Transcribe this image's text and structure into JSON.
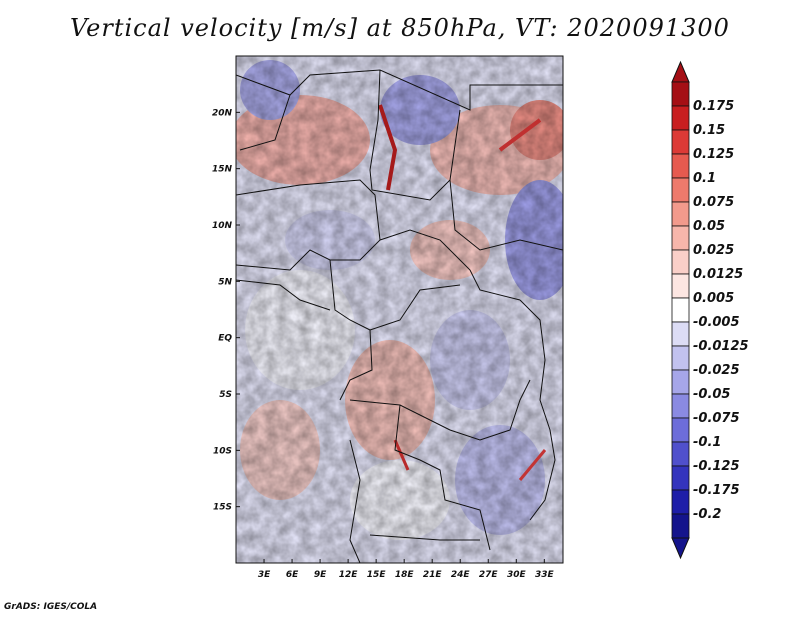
{
  "title": "Vertical velocity [m/s] at 850hPa, VT: 2020091300",
  "credit": "GrADS: IGES/COLA",
  "map": {
    "variable": "Vertical velocity",
    "units": "m/s",
    "level": "850hPa",
    "valid_time": "2020091300",
    "lat_labels": [
      "20N",
      "15N",
      "10N",
      "5N",
      "EQ",
      "5S",
      "10S",
      "15S"
    ],
    "lon_labels": [
      "3E",
      "6E",
      "9E",
      "12E",
      "15E",
      "18E",
      "21E",
      "24E",
      "27E",
      "30E",
      "33E"
    ],
    "lat_range": [
      -20,
      25
    ],
    "lon_range": [
      0,
      35
    ]
  },
  "colorbar": {
    "labels": [
      "0.175",
      "0.15",
      "0.125",
      "0.1",
      "0.075",
      "0.05",
      "0.025",
      "0.0125",
      "0.005",
      "-0.005",
      "-0.0125",
      "-0.025",
      "-0.05",
      "-0.075",
      "-0.1",
      "-0.125",
      "-0.175",
      "-0.2"
    ],
    "colors": [
      "#a50f15",
      "#c81e20",
      "#dc3a36",
      "#e65a4f",
      "#ee7a6c",
      "#f29a8c",
      "#f7b6ab",
      "#facfc8",
      "#fde6e2",
      "#ffffff",
      "#dcdcf5",
      "#c2c2ef",
      "#a6a6e9",
      "#8a8ae2",
      "#6d6dd9",
      "#5050cc",
      "#3434bd",
      "#1e1ea8",
      "#14148c"
    ],
    "top_arrow_color": "#a50f15",
    "bottom_arrow_color": "#14148c"
  }
}
